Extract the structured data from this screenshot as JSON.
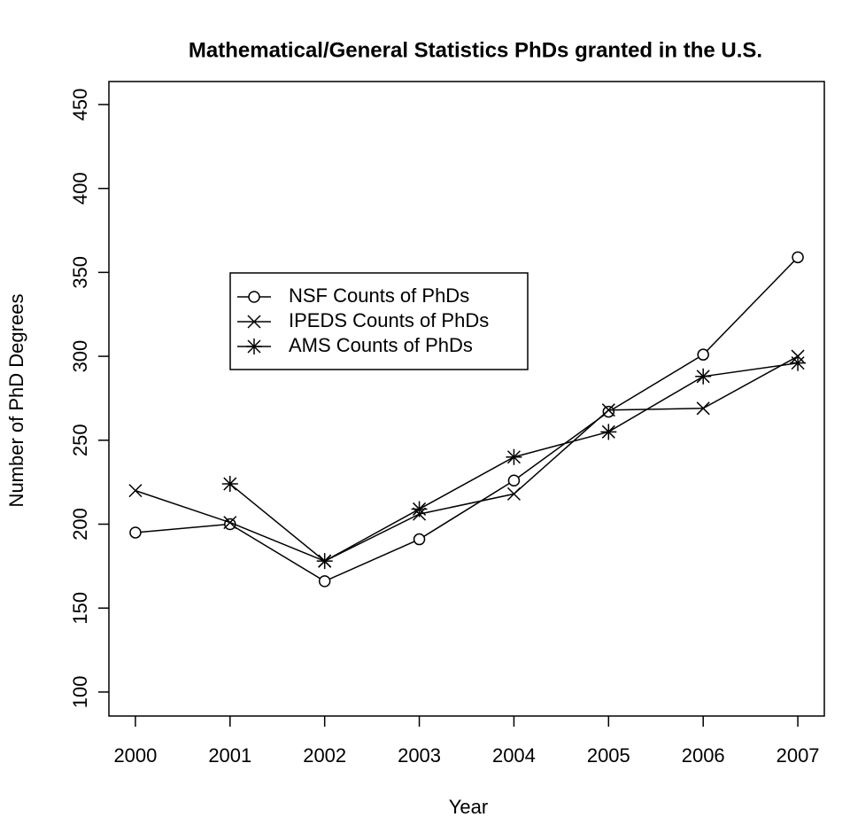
{
  "chart_data": {
    "type": "line",
    "title": "Mathematical/General Statistics PhDs granted in the U.S.",
    "x_label": "Year",
    "y_label": "Number of PhD  Degrees",
    "x": [
      2000,
      2001,
      2002,
      2003,
      2004,
      2005,
      2006,
      2007
    ],
    "series": [
      {
        "name": "NSF Counts of PhDs",
        "color": "#000000",
        "marker": "circle",
        "values": [
          195,
          200,
          166,
          191,
          226,
          267,
          301,
          359
        ]
      },
      {
        "name": "IPEDS Counts of PhDs",
        "color": "#000000",
        "marker": "x",
        "values": [
          220,
          201,
          178,
          206,
          218,
          268,
          269,
          300
        ]
      },
      {
        "name": "AMS Counts of PhDs",
        "color": "#000000",
        "marker": "asterisk",
        "values": [
          null,
          224,
          178,
          209,
          240,
          255,
          288,
          296
        ]
      }
    ],
    "xlim": [
      1999.72,
      2007.28
    ],
    "xticks": [
      2000,
      2001,
      2002,
      2003,
      2004,
      2005,
      2006,
      2007
    ],
    "ylim": [
      85.7,
      463.7
    ],
    "yticks": [
      100,
      150,
      200,
      250,
      300,
      350,
      400,
      450
    ],
    "grid": false,
    "legend_position": "center-left"
  }
}
